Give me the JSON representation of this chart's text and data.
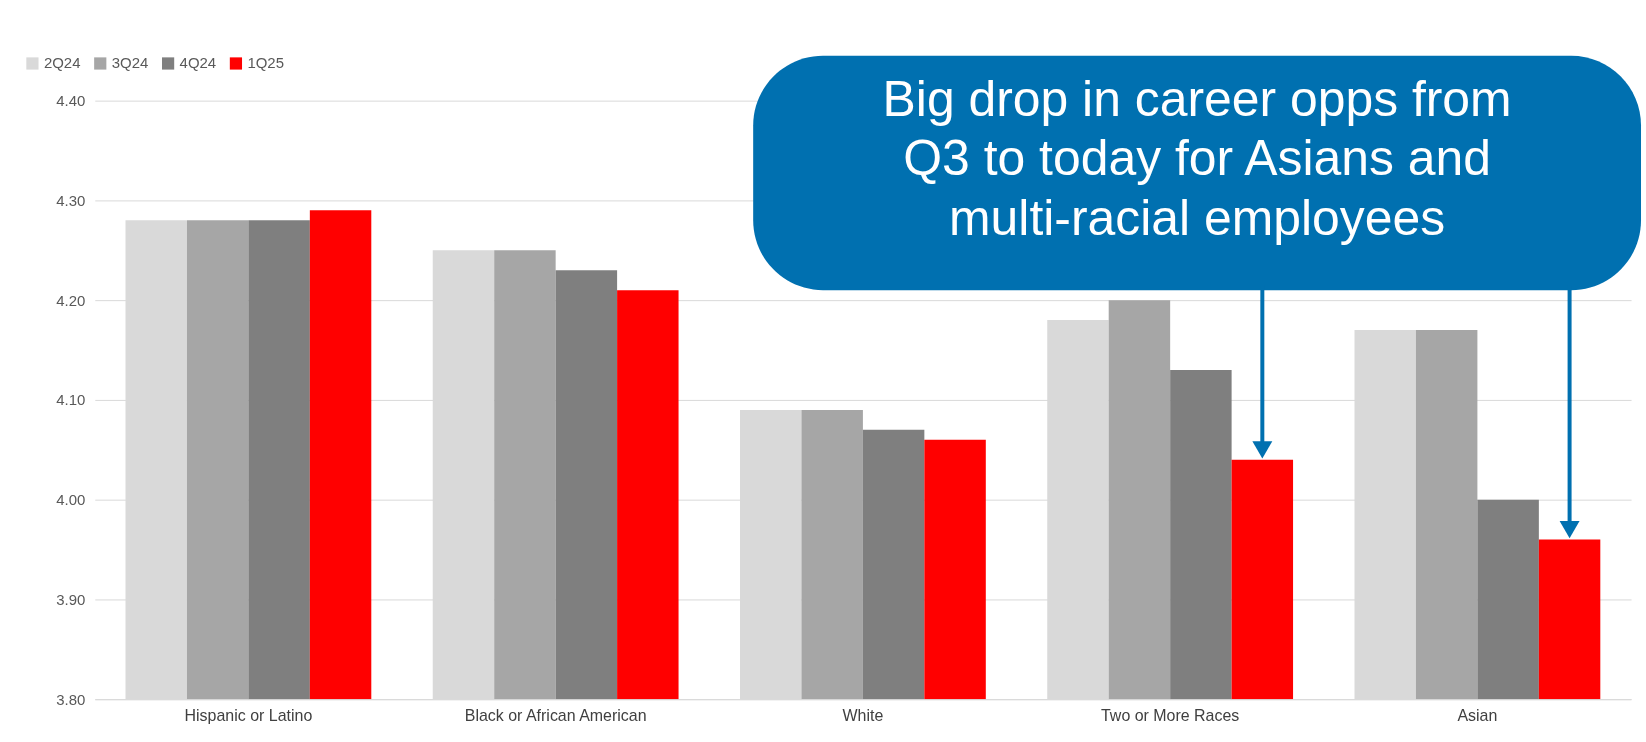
{
  "chart_data": {
    "type": "bar",
    "categories": [
      "Hispanic or Latino",
      "Black or African American",
      "White",
      "Two or More Races",
      "Asian"
    ],
    "series": [
      {
        "name": "2Q24",
        "color": "#d9d9d9",
        "values": [
          4.28,
          4.25,
          4.09,
          4.18,
          4.17
        ]
      },
      {
        "name": "3Q24",
        "color": "#a6a6a6",
        "values": [
          4.28,
          4.25,
          4.09,
          4.2,
          4.17
        ]
      },
      {
        "name": "4Q24",
        "color": "#7f7f7f",
        "values": [
          4.28,
          4.23,
          4.07,
          4.13,
          4.0
        ]
      },
      {
        "name": "1Q25",
        "color": "#ff0000",
        "values": [
          4.29,
          4.21,
          4.06,
          4.04,
          3.96
        ]
      }
    ],
    "ylim": [
      3.8,
      4.4
    ],
    "yticks": [
      {
        "value": 3.8,
        "label": "3.80"
      },
      {
        "value": 3.9,
        "label": "3.90"
      },
      {
        "value": 4.0,
        "label": "4.00"
      },
      {
        "value": 4.1,
        "label": "4.10"
      },
      {
        "value": 4.2,
        "label": "4.20"
      },
      {
        "value": 4.3,
        "label": "4.30"
      },
      {
        "value": 4.4,
        "label": "4.40"
      }
    ],
    "grid": "y",
    "legend": "top left",
    "annotations": [
      "Big drop in career opps from Q3 to today for Asians and multi-racial employees"
    ]
  }
}
